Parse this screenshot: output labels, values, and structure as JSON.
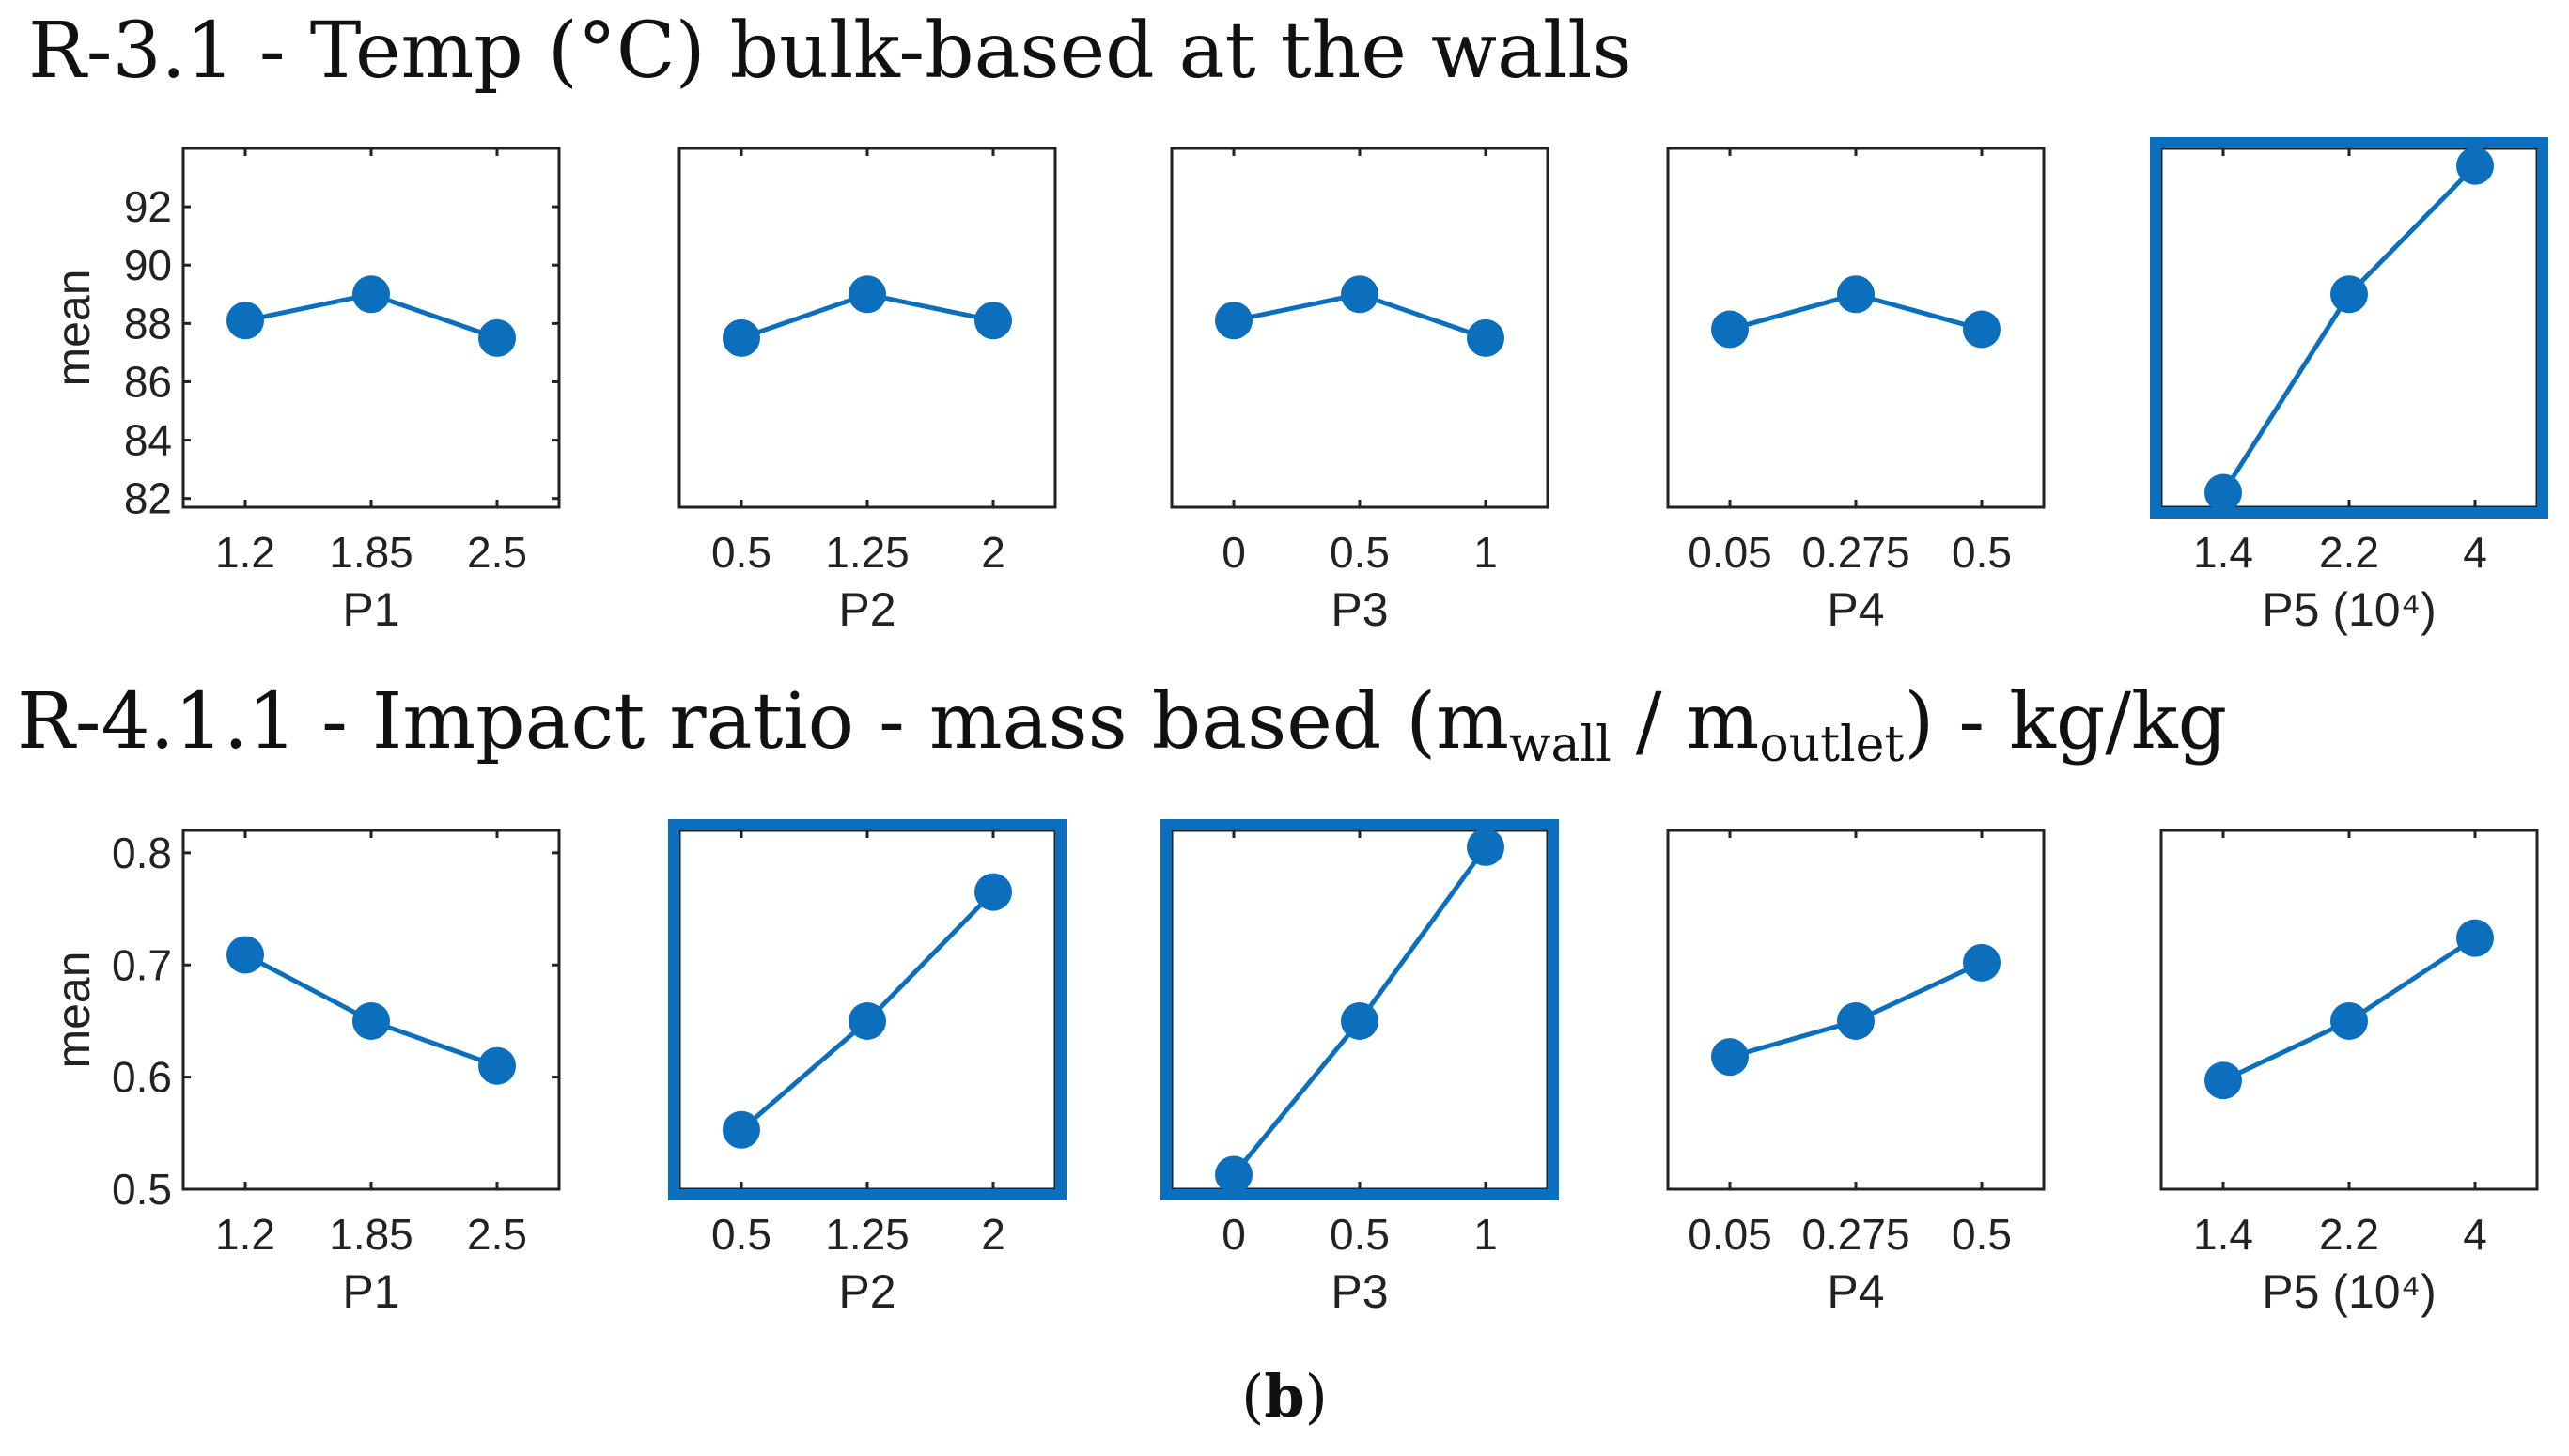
{
  "titles": {
    "row1": "R-3.1 - Temp (°C) bulk-based at the walls",
    "row2_main": "R-4.1.1 - Impact ratio - mass based (m",
    "row2_sub1": "wall",
    "row2_mid": " / m",
    "row2_sub2": "outlet",
    "row2_end": ") - kg/kg"
  },
  "caption": {
    "open": "(",
    "letter": "b",
    "close": ")"
  },
  "colors": {
    "series": "#0b6fbd",
    "highlight": "#0b6fbd",
    "axis": "#222222"
  },
  "chart_data": [
    {
      "type": "line",
      "row": 1,
      "xlabel": "P1",
      "ylabel": "mean",
      "x_ticks": [
        "1.2",
        "1.85",
        "2.5"
      ],
      "values": [
        88.1,
        89.0,
        87.5
      ],
      "ylim": [
        81.7,
        94.0
      ],
      "y_ticks": [
        82,
        84,
        86,
        88,
        90,
        92
      ],
      "highlighted": false
    },
    {
      "type": "line",
      "row": 1,
      "xlabel": "P2",
      "ylabel": "",
      "x_ticks": [
        "0.5",
        "1.25",
        "2"
      ],
      "values": [
        87.5,
        89.0,
        88.1
      ],
      "ylim": [
        81.7,
        94.0
      ],
      "y_ticks": [],
      "highlighted": false
    },
    {
      "type": "line",
      "row": 1,
      "xlabel": "P3",
      "ylabel": "",
      "x_ticks": [
        "0",
        "0.5",
        "1"
      ],
      "values": [
        88.1,
        89.0,
        87.5
      ],
      "ylim": [
        81.7,
        94.0
      ],
      "y_ticks": [],
      "highlighted": false
    },
    {
      "type": "line",
      "row": 1,
      "xlabel": "P4",
      "ylabel": "",
      "x_ticks": [
        "0.05",
        "0.275",
        "0.5"
      ],
      "values": [
        87.8,
        89.0,
        87.8
      ],
      "ylim": [
        81.7,
        94.0
      ],
      "y_ticks": [],
      "highlighted": false
    },
    {
      "type": "line",
      "row": 1,
      "xlabel": "P5 (10⁴)",
      "ylabel": "",
      "x_ticks": [
        "1.4",
        "2.2",
        "4"
      ],
      "values": [
        82.2,
        89.0,
        93.4
      ],
      "ylim": [
        81.7,
        94.0
      ],
      "y_ticks": [],
      "highlighted": true
    },
    {
      "type": "line",
      "row": 2,
      "xlabel": "P1",
      "ylabel": "mean",
      "x_ticks": [
        "1.2",
        "1.85",
        "2.5"
      ],
      "values": [
        0.709,
        0.65,
        0.61
      ],
      "ylim": [
        0.5,
        0.82
      ],
      "y_ticks": [
        "0.5",
        "0.6",
        "0.7",
        "0.8"
      ],
      "highlighted": false
    },
    {
      "type": "line",
      "row": 2,
      "xlabel": "P2",
      "ylabel": "",
      "x_ticks": [
        "0.5",
        "1.25",
        "2"
      ],
      "values": [
        0.553,
        0.65,
        0.765
      ],
      "ylim": [
        0.5,
        0.82
      ],
      "y_ticks": [],
      "highlighted": true
    },
    {
      "type": "line",
      "row": 2,
      "xlabel": "P3",
      "ylabel": "",
      "x_ticks": [
        "0",
        "0.5",
        "1"
      ],
      "values": [
        0.513,
        0.65,
        0.805
      ],
      "ylim": [
        0.5,
        0.82
      ],
      "y_ticks": [],
      "highlighted": true
    },
    {
      "type": "line",
      "row": 2,
      "xlabel": "P4",
      "ylabel": "",
      "x_ticks": [
        "0.05",
        "0.275",
        "0.5"
      ],
      "values": [
        0.618,
        0.65,
        0.702
      ],
      "ylim": [
        0.5,
        0.82
      ],
      "y_ticks": [],
      "highlighted": false
    },
    {
      "type": "line",
      "row": 2,
      "xlabel": "P5 (10⁴)",
      "ylabel": "",
      "x_ticks": [
        "1.4",
        "2.2",
        "4"
      ],
      "values": [
        0.597,
        0.65,
        0.724
      ],
      "ylim": [
        0.5,
        0.82
      ],
      "y_ticks": [],
      "highlighted": false
    }
  ]
}
